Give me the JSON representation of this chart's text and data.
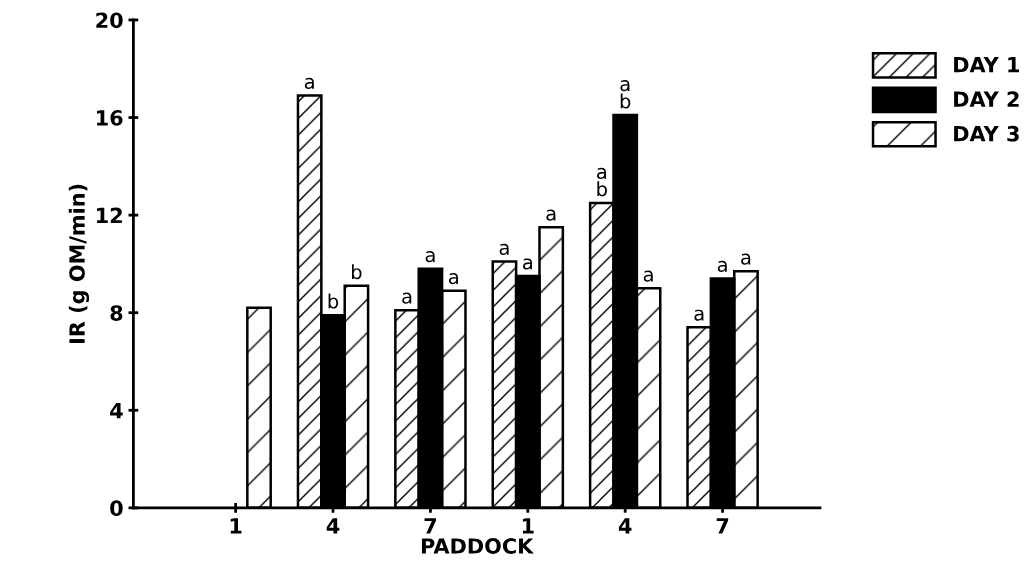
{
  "chart_data": {
    "type": "bar",
    "xlabel": "PADDOCK",
    "ylabel": "IR (g OM/min)",
    "categories": [
      "1",
      "4",
      "7",
      "1",
      "4",
      "7"
    ],
    "series": [
      {
        "name": "DAY 1",
        "color": "#000000",
        "values": [
          null,
          16.9,
          8.1,
          10.1,
          12.5,
          7.4
        ],
        "value_labels": [
          null,
          "a",
          "a",
          "a",
          "a\nb",
          "a"
        ]
      },
      {
        "name": "DAY 2",
        "color": "#000000",
        "values": [
          null,
          7.9,
          9.8,
          9.5,
          16.1,
          9.4
        ],
        "value_labels": [
          null,
          "b",
          "a",
          "a",
          "a\nb",
          "a"
        ]
      },
      {
        "name": "DAY 3",
        "color": "#000000",
        "values": [
          8.2,
          9.1,
          8.9,
          11.5,
          9.0,
          9.7
        ],
        "value_labels": [
          null,
          "b",
          "a",
          "a",
          "a",
          "a"
        ]
      }
    ],
    "ylim": [
      0,
      20
    ],
    "yticks": [
      0,
      4,
      8,
      12,
      16,
      20
    ],
    "grid": false,
    "legend": "top right"
  }
}
